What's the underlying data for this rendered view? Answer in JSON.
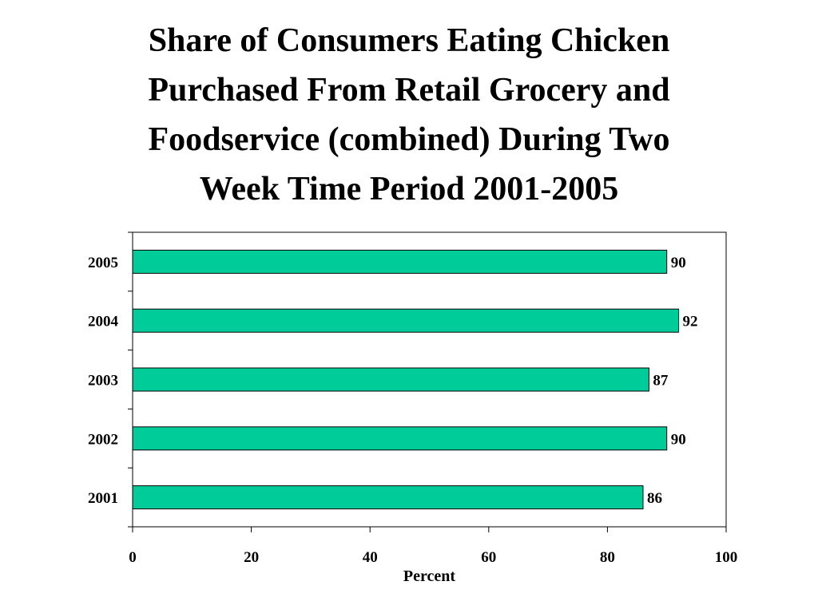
{
  "chart_data": {
    "type": "bar",
    "orientation": "horizontal",
    "title_lines": [
      "Share of Consumers Eating Chicken",
      "Purchased From Retail Grocery and",
      "Foodservice (combined) During Two",
      "Week Time Period 2001-2005"
    ],
    "categories": [
      "2005",
      "2004",
      "2003",
      "2002",
      "2001"
    ],
    "values": [
      90,
      92,
      87,
      90,
      86
    ],
    "data_labels": [
      "90",
      "92",
      "87",
      "90",
      "86"
    ],
    "xlabel": "Percent",
    "ylabel": "",
    "xlim": [
      0,
      100
    ],
    "xticks": [
      "0",
      "20",
      "40",
      "60",
      "80",
      "100"
    ],
    "grid": false,
    "legend": "none",
    "colors": {
      "bar": "#00CC99",
      "bar_outline": "#000000",
      "axis": "#000000"
    }
  }
}
